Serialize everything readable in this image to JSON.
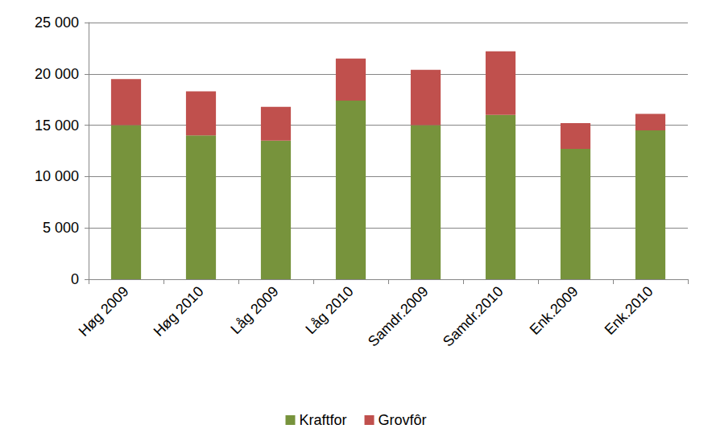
{
  "chart_data": {
    "type": "bar",
    "stacked": true,
    "categories": [
      "Høg 2009",
      "Høg 2010",
      "Låg 2009",
      "Låg 2010",
      "Samdr.2009",
      "Samdr.2010",
      "Enk.2009",
      "Enk.2010"
    ],
    "series": [
      {
        "name": "Kraftfor",
        "color": "#77933c",
        "values": [
          15000,
          14000,
          13500,
          17400,
          15000,
          16000,
          12700,
          14500
        ]
      },
      {
        "name": "Grovfôr",
        "color": "#c0504d",
        "values": [
          4500,
          4300,
          3300,
          4100,
          5400,
          6200,
          2500,
          1600
        ]
      }
    ],
    "ylim": [
      0,
      25000
    ],
    "yticks": [
      {
        "value": 0,
        "label": "0"
      },
      {
        "value": 5000,
        "label": "5 000"
      },
      {
        "value": 10000,
        "label": "10 000"
      },
      {
        "value": 15000,
        "label": "15 000"
      },
      {
        "value": 20000,
        "label": "20 000"
      },
      {
        "value": 25000,
        "label": "25 000"
      }
    ],
    "grid": true,
    "legend": "bottom"
  }
}
